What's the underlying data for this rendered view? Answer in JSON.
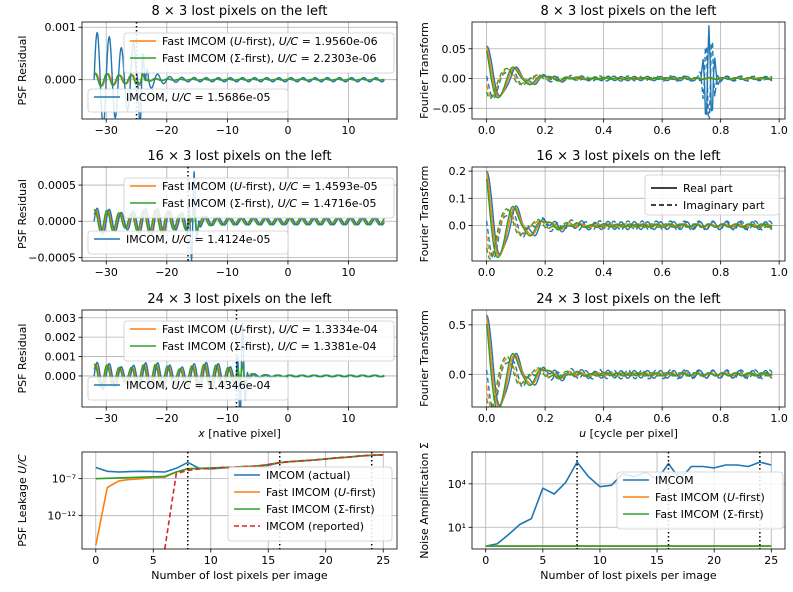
{
  "colors": {
    "imcom": "#1f77b4",
    "ufirst": "#ff7f0e",
    "sfirst": "#2ca02c",
    "reported": "#d62728",
    "grid": "#b0b0b0"
  },
  "chart_data": [
    {
      "type": "line",
      "title": "8 × 3 lost pixels on the left",
      "xlabel": "",
      "ylabel": "PSF Residual",
      "xlim": [
        -34,
        18
      ],
      "ylim": [
        -0.00075,
        0.0011
      ],
      "xticks": [
        -30,
        -20,
        -10,
        0,
        10
      ],
      "xtick_labels": [
        "−30",
        "−20",
        "−10",
        "0",
        "10"
      ],
      "yticks": [
        0.0,
        0.001
      ],
      "ytick_labels": [
        "0.000",
        "0.001"
      ],
      "marker_x": -25,
      "series": [
        {
          "name": "IMCOM, U/C = 1.5686e-05",
          "x_range": [
            -32,
            16
          ],
          "left_amp": 0.0009,
          "right_amp": 4e-05,
          "spike_amp": 0.0006
        },
        {
          "name": "Fast IMCOM (U-first), U/C = 1.9560e-06",
          "x_range": [
            -32,
            16
          ],
          "left_amp": 0.00012,
          "right_amp": 1e-05,
          "spike_amp": 8e-05
        },
        {
          "name": "Fast IMCOM (Σ-first), U/C = 2.2303e-06",
          "x_range": [
            -32,
            16
          ],
          "left_amp": 0.00013,
          "right_amp": 1e-05,
          "spike_amp": 8e-05
        }
      ],
      "legend_top": [
        "Fast IMCOM (U-first), U/C = 1.9560e-06",
        "Fast IMCOM (Σ-first), U/C = 2.2303e-06"
      ],
      "legend_bottom": [
        "IMCOM, U/C = 1.5686e-05"
      ]
    },
    {
      "type": "line",
      "title": "8 × 3 lost pixels on the left",
      "xlabel": "",
      "ylabel": "Fourier Transform",
      "xlim": [
        -0.05,
        1.02
      ],
      "ylim": [
        -0.068,
        0.095
      ],
      "xticks": [
        0.0,
        0.2,
        0.4,
        0.6,
        0.8,
        1.0
      ],
      "xtick_labels": [
        "0.0",
        "0.2",
        "0.4",
        "0.6",
        "0.8",
        "1.0"
      ],
      "yticks": [
        -0.05,
        0.0,
        0.05
      ],
      "ytick_labels": [
        "−0.05",
        "0.00",
        "0.05"
      ],
      "start": 0.055,
      "amp": 0.03,
      "late_peak": 0.09,
      "late_u": 0.76
    },
    {
      "type": "line",
      "title": "16 × 3 lost pixels on the left",
      "xlabel": "",
      "ylabel": "PSF Residual",
      "xlim": [
        -34,
        18
      ],
      "ylim": [
        -0.00055,
        0.00075
      ],
      "xticks": [
        -30,
        -20,
        -10,
        0,
        10
      ],
      "xtick_labels": [
        "−30",
        "−20",
        "−10",
        "0",
        "10"
      ],
      "yticks": [
        -0.0005,
        0.0,
        0.0005
      ],
      "ytick_labels": [
        "−0.0005",
        "0.0000",
        "0.0005"
      ],
      "marker_x": -16.5,
      "series": [
        {
          "name": "IMCOM, U/C = 1.4124e-05",
          "x_range": [
            -32,
            16
          ],
          "left_amp": 0.00018,
          "right_amp": 5e-05,
          "spike_amp": 0.0007
        },
        {
          "name": "Fast IMCOM (U-first), U/C = 1.4593e-05",
          "x_range": [
            -32,
            16
          ],
          "left_amp": 0.00016,
          "right_amp": 5e-05,
          "spike_amp": 0.00012
        },
        {
          "name": "Fast IMCOM (Σ-first), U/C = 1.4716e-05",
          "x_range": [
            -32,
            16
          ],
          "left_amp": 0.00016,
          "right_amp": 5e-05,
          "spike_amp": 0.00012
        }
      ],
      "legend_top": [
        "Fast IMCOM (U-first), U/C = 1.4593e-05",
        "Fast IMCOM (Σ-first), U/C = 1.4716e-05"
      ],
      "legend_bottom": [
        "IMCOM, U/C = 1.4124e-05"
      ]
    },
    {
      "type": "line",
      "title": "16 × 3 lost pixels on the left",
      "xlabel": "",
      "ylabel": "Fourier Transform",
      "xlim": [
        -0.05,
        1.02
      ],
      "ylim": [
        -0.13,
        0.215
      ],
      "xticks": [
        0.0,
        0.2,
        0.4,
        0.6,
        0.8,
        1.0
      ],
      "xtick_labels": [
        "0.0",
        "0.2",
        "0.4",
        "0.6",
        "0.8",
        "1.0"
      ],
      "yticks": [
        0.0,
        0.1,
        0.2
      ],
      "ytick_labels": [
        "0.0",
        "0.1",
        "0.2"
      ],
      "start": 0.2,
      "amp": 0.12,
      "legend": [
        "Real part",
        "Imaginary part"
      ]
    },
    {
      "type": "line",
      "title": "24 × 3 lost pixels on the left",
      "xlabel": "x [native pixel]",
      "ylabel": "PSF Residual",
      "xlim": [
        -34,
        18
      ],
      "ylim": [
        -0.0016,
        0.0034
      ],
      "xticks": [
        -30,
        -20,
        -10,
        0,
        10
      ],
      "xtick_labels": [
        "−30",
        "−20",
        "−10",
        "0",
        "10"
      ],
      "yticks": [
        0.0,
        0.001,
        0.002,
        0.003
      ],
      "ytick_labels": [
        "0.000",
        "0.001",
        "0.002",
        "0.003"
      ],
      "marker_x": -8.5,
      "series": [
        {
          "name": "IMCOM, U/C = 1.4346e-04",
          "x_range": [
            -32,
            16
          ],
          "left_amp": 0.0007,
          "right_amp": 4e-05,
          "spike_amp": 0.003
        },
        {
          "name": "Fast IMCOM (U-first), U/C = 1.3334e-04",
          "x_range": [
            -32,
            16
          ],
          "left_amp": 0.0006,
          "right_amp": 4e-05,
          "spike_amp": 0.0006
        },
        {
          "name": "Fast IMCOM (Σ-first), U/C = 1.3381e-04",
          "x_range": [
            -32,
            16
          ],
          "left_amp": 0.0006,
          "right_amp": 4e-05,
          "spike_amp": 0.0006
        }
      ],
      "legend_top": [
        "Fast IMCOM (U-first), U/C = 1.3334e-04",
        "Fast IMCOM (Σ-first), U/C = 1.3381e-04"
      ],
      "legend_bottom": [
        "IMCOM, U/C = 1.4346e-04"
      ]
    },
    {
      "type": "line",
      "title": "24 × 3 lost pixels on the left",
      "xlabel": "u [cycle per pixel]",
      "ylabel": "Fourier Transform",
      "xlim": [
        -0.05,
        1.02
      ],
      "ylim": [
        -0.33,
        0.65
      ],
      "xticks": [
        0.0,
        0.2,
        0.4,
        0.6,
        0.8,
        1.0
      ],
      "xtick_labels": [
        "0.0",
        "0.2",
        "0.4",
        "0.6",
        "0.8",
        "1.0"
      ],
      "yticks": [
        0.0,
        0.5
      ],
      "ytick_labels": [
        "0.0",
        "0.5"
      ],
      "start": 0.6,
      "amp": 0.32
    },
    {
      "type": "line",
      "title": "",
      "xlabel": "Number of lost pixels per image",
      "ylabel": "PSF Leakage U/C",
      "xscale": "linear",
      "yscale": "log",
      "xlim": [
        -1.2,
        26.2
      ],
      "ylim_log10": [
        -16.5,
        -3.4
      ],
      "xticks": [
        0,
        5,
        10,
        15,
        20,
        25
      ],
      "xtick_labels": [
        "0",
        "5",
        "10",
        "15",
        "20",
        "25"
      ],
      "yticks_log10": [
        -7,
        -12
      ],
      "ytick_labels": [
        "10⁻⁷",
        "10⁻¹²"
      ],
      "markers_x": [
        8,
        16,
        24
      ],
      "x": [
        0,
        1,
        2,
        3,
        4,
        5,
        6,
        7,
        8,
        9,
        10,
        11,
        12,
        13,
        14,
        15,
        16,
        17,
        18,
        19,
        20,
        21,
        22,
        23,
        24,
        25
      ],
      "series": [
        {
          "name": "IMCOM (actual)",
          "log10": [
            -5.5,
            -6.0,
            -6.1,
            -6.05,
            -6.0,
            -6.05,
            -6.1,
            -5.6,
            -4.8,
            -5.6,
            -5.7,
            -5.55,
            -5.5,
            -5.35,
            -5.3,
            -5.2,
            -4.85,
            -4.7,
            -4.6,
            -4.5,
            -4.35,
            -4.2,
            -4.1,
            -3.95,
            -3.85,
            -3.8
          ]
        },
        {
          "name": "Fast IMCOM (U-first)",
          "log10": [
            -16.0,
            -8.2,
            -7.3,
            -7.1,
            -7.0,
            -6.8,
            -6.8,
            -6.1,
            -5.7,
            -5.6,
            -5.6,
            -5.5,
            -5.45,
            -5.35,
            -5.3,
            -5.1,
            -4.85,
            -4.7,
            -4.6,
            -4.5,
            -4.35,
            -4.2,
            -4.1,
            -3.95,
            -3.85,
            -3.8
          ]
        },
        {
          "name": "Fast IMCOM (Σ-first)",
          "log10": [
            -7.0,
            -6.95,
            -6.9,
            -6.85,
            -6.8,
            -6.75,
            -6.7,
            -6.1,
            -5.65,
            -5.6,
            -5.55,
            -5.5,
            -5.45,
            -5.35,
            -5.3,
            -5.1,
            -4.83,
            -4.68,
            -4.58,
            -4.48,
            -4.33,
            -4.18,
            -4.08,
            -3.93,
            -3.83,
            -3.78
          ]
        },
        {
          "name": "IMCOM (reported)",
          "log10": [
            null,
            null,
            null,
            null,
            null,
            null,
            -16.5,
            -6.3,
            -5.9,
            -5.7,
            -5.6,
            -5.5,
            -5.45,
            -5.35,
            -5.3,
            -5.1,
            -4.83,
            -4.68,
            -4.58,
            -4.48,
            -4.33,
            -4.18,
            -4.08,
            -3.93,
            -3.83,
            -3.78
          ]
        }
      ]
    },
    {
      "type": "line",
      "title": "",
      "xlabel": "Number of lost pixels per image",
      "ylabel": "Noise Amplification Σ",
      "xscale": "linear",
      "yscale": "log",
      "xlim": [
        -1.2,
        26.2
      ],
      "ylim_log10": [
        -0.5,
        6.2
      ],
      "xticks": [
        0,
        5,
        10,
        15,
        20,
        25
      ],
      "xtick_labels": [
        "0",
        "5",
        "10",
        "15",
        "20",
        "25"
      ],
      "yticks_log10": [
        1,
        4
      ],
      "ytick_labels": [
        "10¹",
        "10⁴"
      ],
      "markers_x": [
        8,
        16,
        24
      ],
      "x": [
        0,
        1,
        2,
        3,
        4,
        5,
        6,
        7,
        8,
        9,
        10,
        11,
        12,
        13,
        14,
        15,
        16,
        17,
        18,
        19,
        20,
        21,
        22,
        23,
        24,
        25
      ],
      "series": [
        {
          "name": "IMCOM",
          "log10": [
            -0.3,
            -0.15,
            0.5,
            1.2,
            1.6,
            3.7,
            3.3,
            4.1,
            5.5,
            4.5,
            3.8,
            3.9,
            4.7,
            4.5,
            4.8,
            4.3,
            5.4,
            4.3,
            5.2,
            5.2,
            5.1,
            5.3,
            5.3,
            5.2,
            5.5,
            5.3
          ]
        },
        {
          "name": "Fast IMCOM (U-first)",
          "log10": [
            -0.3,
            -0.3,
            -0.3,
            -0.3,
            -0.3,
            -0.3,
            -0.3,
            -0.3,
            -0.3,
            -0.3,
            -0.3,
            -0.3,
            -0.3,
            -0.3,
            -0.3,
            -0.3,
            -0.3,
            -0.3,
            -0.3,
            -0.3,
            -0.3,
            -0.3,
            -0.3,
            -0.3,
            -0.3,
            -0.3
          ]
        },
        {
          "name": "Fast IMCOM (Σ-first)",
          "log10": [
            -0.3,
            -0.3,
            -0.3,
            -0.3,
            -0.3,
            -0.3,
            -0.3,
            -0.3,
            -0.3,
            -0.3,
            -0.3,
            -0.3,
            -0.3,
            -0.3,
            -0.3,
            -0.3,
            -0.3,
            -0.3,
            -0.3,
            -0.3,
            -0.3,
            -0.3,
            -0.3,
            -0.3,
            -0.3,
            -0.3
          ]
        }
      ]
    }
  ]
}
